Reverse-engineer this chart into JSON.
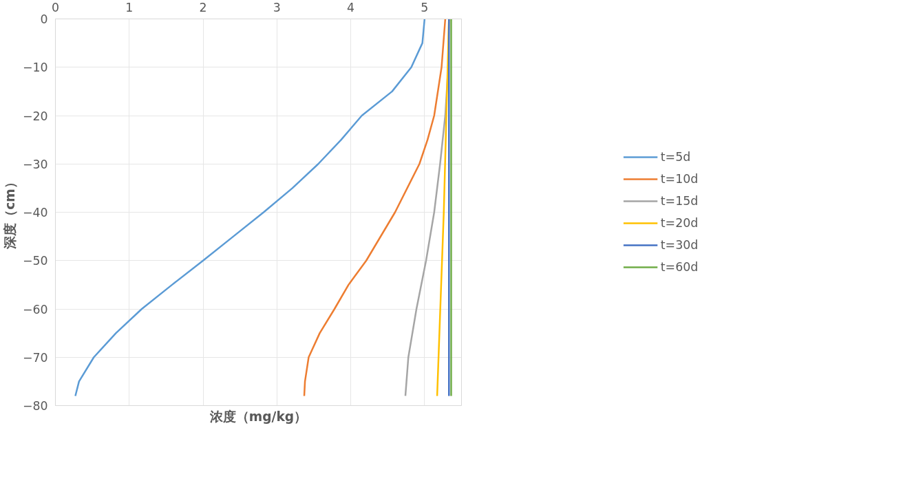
{
  "chart_data": {
    "type": "line",
    "xlabel": "浓度（mg/kg）",
    "ylabel": "深度（cm）",
    "xlim": [
      0,
      5.5
    ],
    "xticks": [
      0,
      1,
      2,
      3,
      4,
      5
    ],
    "ylim": [
      -80,
      0
    ],
    "yticks": [
      -80,
      -70,
      -60,
      -50,
      -40,
      -30,
      -20,
      -10,
      0
    ],
    "grid": true,
    "legend": "right",
    "marker": "none",
    "line_style": "solid",
    "series": [
      {
        "name": "t=5d",
        "color": "#5b9bd5",
        "x": [
          5.0,
          4.97,
          4.82,
          4.56,
          4.15,
          3.87,
          3.56,
          3.21,
          2.82,
          2.41,
          2.0,
          1.58,
          1.17,
          0.82,
          0.52,
          0.32,
          0.27
        ],
        "values": [
          0,
          -5,
          -10,
          -15,
          -20,
          -25,
          -30,
          -35,
          -40,
          -45,
          -50,
          -55,
          -60,
          -65,
          -70,
          -75,
          -78
        ]
      },
      {
        "name": "t=10d",
        "color": "#ed7d31",
        "x": [
          5.28,
          5.23,
          5.13,
          5.04,
          4.93,
          4.6,
          4.21,
          3.97,
          3.78,
          3.58,
          3.43,
          3.38,
          3.37
        ],
        "values": [
          0,
          -10,
          -20,
          -25,
          -30,
          -40,
          -50,
          -55,
          -60,
          -65,
          -70,
          -75,
          -78
        ]
      },
      {
        "name": "t=15d",
        "color": "#a5a5a5",
        "x": [
          5.33,
          5.32,
          5.28,
          5.21,
          5.13,
          5.02,
          4.89,
          4.78,
          4.74
        ],
        "values": [
          0,
          -10,
          -20,
          -30,
          -40,
          -50,
          -60,
          -70,
          -78
        ]
      },
      {
        "name": "t=20d",
        "color": "#ffc000",
        "x": [
          5.33,
          5.26,
          5.17
        ],
        "values": [
          0,
          -40,
          -78
        ]
      },
      {
        "name": "t=30d",
        "color": "#4472c4",
        "x": [
          5.33,
          5.33
        ],
        "values": [
          0,
          -78
        ]
      },
      {
        "name": "t=60d",
        "color": "#70ad47",
        "x": [
          5.36,
          5.36
        ],
        "values": [
          0,
          -78
        ]
      }
    ]
  }
}
